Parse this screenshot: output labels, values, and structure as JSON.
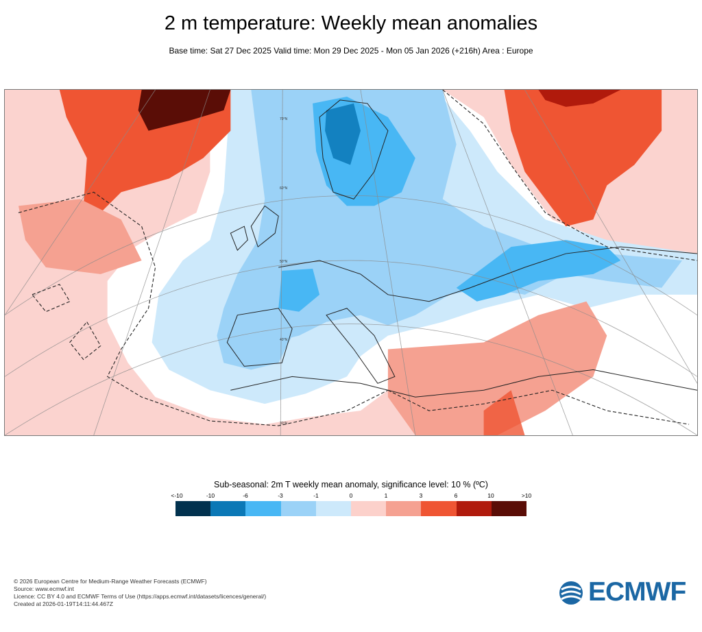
{
  "title": "2 m temperature: Weekly mean anomalies",
  "subtitle": "Base time: Sat 27 Dec 2025 Valid time: Mon 29 Dec 2025 - Mon 05 Jan 2026 (+216h) Area : Europe",
  "map": {
    "lat_labels": [
      "70°N",
      "60°N",
      "50°N",
      "40°N",
      "30°N"
    ],
    "colors": {
      "ocean_warm": "#fbd3cf",
      "warm_medium": "#f5a191",
      "warm_strong": "#ef5533",
      "warm_very": "#b01a0c",
      "warm_extreme": "#5a0d06",
      "cold_light": "#cde9fb",
      "cold_medium": "#9bd2f7",
      "cold_strong": "#48b7f4",
      "cold_very": "#0b78b6",
      "neutral": "#ffffff"
    }
  },
  "legend": {
    "title": "Sub-seasonal: 2m T weekly mean anomaly, significance level: 10 % (ºC)",
    "ticks": [
      "<-10",
      "-10",
      "-6",
      "-3",
      "-1",
      "0",
      "1",
      "3",
      "6",
      "10",
      ">10"
    ],
    "colors": [
      "#02324f",
      "#0b78b6",
      "#48b7f4",
      "#9bd2f7",
      "#cde9fb",
      "#fcd1cb",
      "#f5a191",
      "#ef5533",
      "#b01a0c",
      "#5a0d06"
    ]
  },
  "footer": {
    "copyright": "© 2026 European Centre for Medium-Range Weather Forecasts (ECMWF)",
    "source": "Source: www.ecmwf.int",
    "licence": "Licence: CC BY 4.0 and ECMWF Terms of Use (https://apps.ecmwf.int/datasets/licences/general/)",
    "created": "Created at 2026-01-19T14:11:44.467Z"
  },
  "logo": {
    "text": "ECMWF",
    "color": "#1b67a4"
  }
}
